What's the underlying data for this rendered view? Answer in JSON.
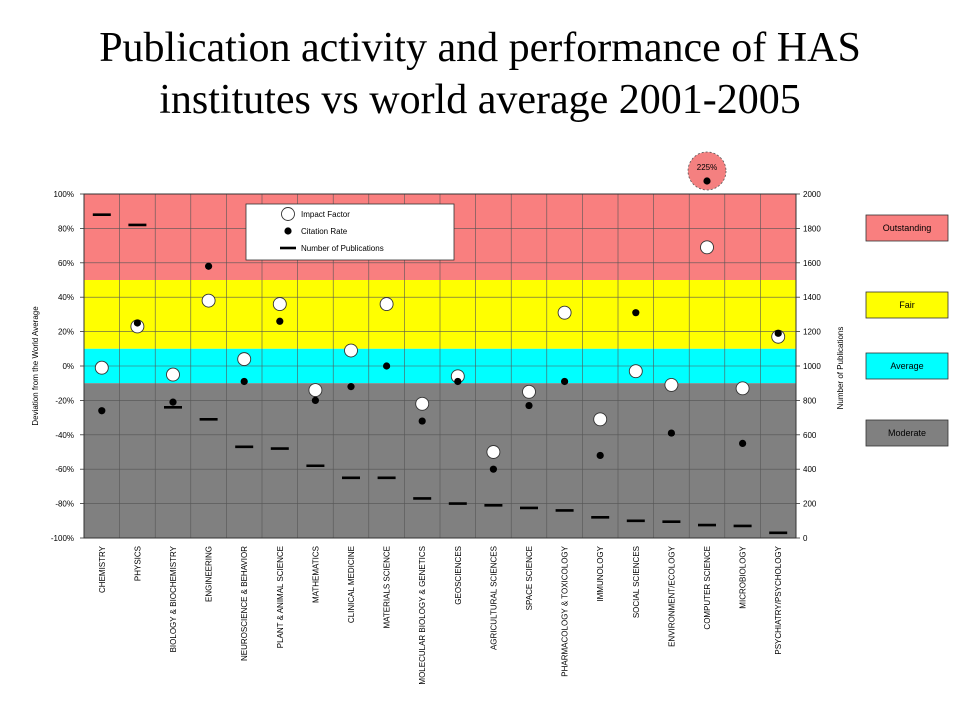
{
  "slide_title_line1": "Publication activity and performance of HAS",
  "slide_title_line2": "institutes vs world average 2001-2005",
  "chart_data": {
    "type": "scatter",
    "title": "Publication activity and performance of HAS institutes vs world average 2001-2005",
    "ylabel": "Deviation from the World Average",
    "y2label": "Number of Publications",
    "ylim": [
      -100,
      100
    ],
    "y2lim": [
      0,
      2000
    ],
    "yticks": [
      "100%",
      "80%",
      "60%",
      "40%",
      "20%",
      "0%",
      "-20%",
      "-40%",
      "-60%",
      "-80%",
      "-100%"
    ],
    "y2ticks": [
      "2000",
      "1800",
      "1600",
      "1400",
      "1200",
      "1000",
      "800",
      "600",
      "400",
      "200",
      "0"
    ],
    "grid": true,
    "legend_position": "top-left",
    "bands": [
      {
        "name": "Outstanding",
        "from": 50,
        "to": 100,
        "color": "#f97f7f"
      },
      {
        "name": "Fair",
        "from": 10,
        "to": 50,
        "color": "#ffff00"
      },
      {
        "name": "Average",
        "from": -10,
        "to": 10,
        "color": "#00ffff"
      },
      {
        "name": "Moderate",
        "from": -100,
        "to": -10,
        "color": "#808080"
      }
    ],
    "categories": [
      "CHEMISTRY",
      "PHYSICS",
      "BIOLOGY & BIOCHEMISTRY",
      "ENGINEERING",
      "NEUROSCIENCE & BEHAVIOR",
      "PLANT & ANIMAL SCIENCE",
      "MATHEMATICS",
      "CLINICAL MEDICINE",
      "MATERIALS SCIENCE",
      "MOLECULAR BIOLOGY & GENETICS",
      "GEOSCIENCES",
      "AGRICULTURAL SCIENCES",
      "SPACE SCIENCE",
      "PHARMACOLOGY & TOXICOLOGY",
      "IMMUNOLOGY",
      "SOCIAL SCIENCES",
      "ENVIRONMENT/ECOLOGY",
      "COMPUTER SCIENCE",
      "MICROBIOLOGY",
      "PSYCHIATRY/PSYCHOLOGY"
    ],
    "series": [
      {
        "name": "Impact Factor",
        "marker": "open-circle",
        "values": [
          -1,
          23,
          -5,
          38,
          4,
          36,
          -14,
          9,
          36,
          -22,
          -6,
          -50,
          -15,
          31,
          -31,
          -3,
          -11,
          69,
          -13,
          17
        ]
      },
      {
        "name": "Citation Rate",
        "marker": "dot",
        "values": [
          -26,
          25,
          -21,
          58,
          -9,
          26,
          -20,
          -12,
          0,
          -32,
          -9,
          -60,
          -23,
          -9,
          -52,
          31,
          -39,
          225,
          -45,
          19
        ]
      },
      {
        "name": "Number of Publications",
        "marker": "dash",
        "axis": "y2",
        "values": [
          1880,
          1820,
          760,
          690,
          530,
          520,
          420,
          350,
          350,
          230,
          200,
          190,
          175,
          160,
          120,
          100,
          95,
          75,
          70,
          30
        ]
      }
    ],
    "annotation": "225%"
  }
}
